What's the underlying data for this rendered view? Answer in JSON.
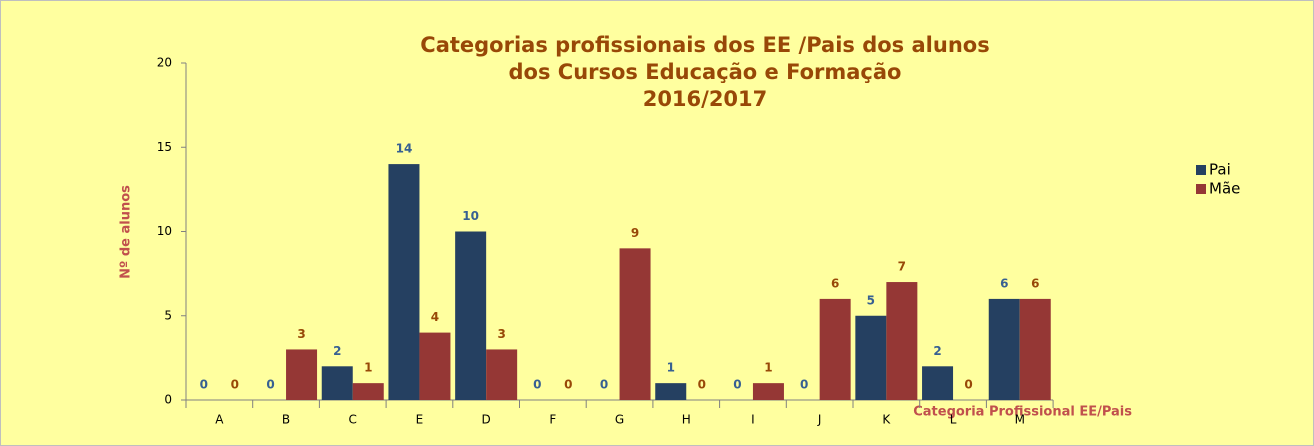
{
  "chart_data": {
    "type": "bar",
    "title": [
      "Categorias profissionais dos EE /Pais dos alunos",
      "dos Cursos Educação e Formação",
      "2016/2017"
    ],
    "x_label": "Categoria Profissional EE/Pais",
    "y_label": "Nº de alunos",
    "categories": [
      "A",
      "B",
      "C",
      "E",
      "D",
      "F",
      "G",
      "H",
      "I",
      "J",
      "K",
      "L",
      "M"
    ],
    "series": [
      {
        "name": "Pai",
        "color": "#254061",
        "label_color": "#376092",
        "values": [
          0,
          0,
          2,
          14,
          10,
          0,
          0,
          1,
          0,
          0,
          5,
          2,
          6
        ]
      },
      {
        "name": "Mãe",
        "color": "#953735",
        "label_color": "#984807",
        "values": [
          0,
          3,
          1,
          4,
          3,
          0,
          9,
          0,
          1,
          6,
          7,
          0,
          6
        ]
      }
    ],
    "ylim": [
      0,
      20
    ],
    "yticks": [
      0,
      5,
      10,
      15,
      20
    ],
    "grid": false,
    "legend": "right"
  }
}
